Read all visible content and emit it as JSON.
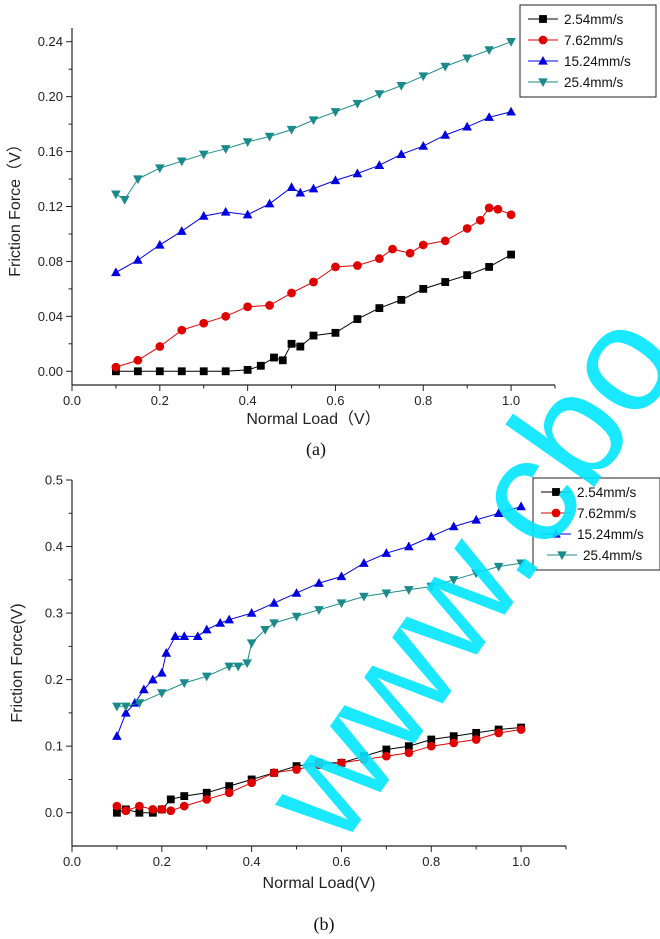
{
  "chart_data": [
    {
      "panel": "(a)",
      "type": "scatter",
      "xlabel": "Normal Load（V）",
      "ylabel": "Friction Force（V）",
      "xlim": [
        0.0,
        1.1
      ],
      "ylim": [
        -0.01,
        0.25
      ],
      "xticks": [
        "0.0",
        "0.2",
        "0.4",
        "0.6",
        "0.8",
        "1.0"
      ],
      "yticks": [
        "0.00",
        "0.04",
        "0.08",
        "0.12",
        "0.16",
        "0.20",
        "0.24"
      ],
      "grid": false,
      "legend_position": "top-right",
      "series": [
        {
          "name": "2.54mm/s",
          "marker": "square",
          "color": "#000000",
          "x": [
            0.1,
            0.15,
            0.2,
            0.25,
            0.3,
            0.35,
            0.4,
            0.43,
            0.46,
            0.48,
            0.5,
            0.52,
            0.55,
            0.6,
            0.65,
            0.7,
            0.75,
            0.8,
            0.85,
            0.9,
            0.95,
            1.0
          ],
          "y": [
            0.0,
            0.0,
            0.0,
            0.0,
            0.0,
            0.0,
            0.001,
            0.004,
            0.01,
            0.008,
            0.02,
            0.018,
            0.026,
            0.028,
            0.038,
            0.046,
            0.052,
            0.06,
            0.065,
            0.07,
            0.076,
            0.085
          ]
        },
        {
          "name": "7.62mm/s",
          "marker": "circle",
          "color": "#e00000",
          "x": [
            0.1,
            0.15,
            0.2,
            0.25,
            0.3,
            0.35,
            0.4,
            0.45,
            0.5,
            0.55,
            0.6,
            0.65,
            0.7,
            0.73,
            0.77,
            0.8,
            0.85,
            0.9,
            0.93,
            0.95,
            0.97,
            1.0
          ],
          "y": [
            0.003,
            0.008,
            0.018,
            0.03,
            0.035,
            0.04,
            0.047,
            0.048,
            0.057,
            0.065,
            0.076,
            0.077,
            0.082,
            0.089,
            0.086,
            0.092,
            0.095,
            0.104,
            0.11,
            0.119,
            0.118,
            0.114
          ]
        },
        {
          "name": "15.24mm/s",
          "marker": "triangle-up",
          "color": "#0000e0",
          "x": [
            0.1,
            0.15,
            0.2,
            0.25,
            0.3,
            0.35,
            0.4,
            0.45,
            0.5,
            0.52,
            0.55,
            0.6,
            0.65,
            0.7,
            0.75,
            0.8,
            0.85,
            0.9,
            0.95,
            1.0
          ],
          "y": [
            0.072,
            0.081,
            0.092,
            0.102,
            0.113,
            0.116,
            0.114,
            0.122,
            0.134,
            0.13,
            0.133,
            0.139,
            0.144,
            0.15,
            0.158,
            0.164,
            0.172,
            0.178,
            0.185,
            0.189
          ]
        },
        {
          "name": "25.4mm/s",
          "marker": "triangle-down",
          "color": "#1a8a8a",
          "x": [
            0.1,
            0.12,
            0.15,
            0.2,
            0.25,
            0.3,
            0.35,
            0.4,
            0.45,
            0.5,
            0.55,
            0.6,
            0.65,
            0.7,
            0.75,
            0.8,
            0.85,
            0.9,
            0.95,
            1.0
          ],
          "y": [
            0.129,
            0.125,
            0.14,
            0.148,
            0.153,
            0.158,
            0.162,
            0.167,
            0.171,
            0.176,
            0.183,
            0.189,
            0.195,
            0.202,
            0.208,
            0.215,
            0.222,
            0.228,
            0.234,
            0.24
          ]
        }
      ]
    },
    {
      "panel": "(b)",
      "type": "scatter",
      "xlabel": "Normal Load(V)",
      "ylabel": "Friction Force(V)",
      "xlim": [
        0.0,
        1.1
      ],
      "ylim": [
        -0.05,
        0.5
      ],
      "xticks": [
        "0.0",
        "0.2",
        "0.4",
        "0.6",
        "0.8",
        "1.0"
      ],
      "yticks": [
        "0.0",
        "0.1",
        "0.2",
        "0.3",
        "0.4",
        "0.5"
      ],
      "grid": false,
      "legend_position": "top-right",
      "series": [
        {
          "name": "2.54mm/s",
          "marker": "square",
          "color": "#000000",
          "x": [
            0.1,
            0.12,
            0.15,
            0.18,
            0.2,
            0.22,
            0.25,
            0.3,
            0.35,
            0.4,
            0.45,
            0.5,
            0.55,
            0.6,
            0.65,
            0.7,
            0.75,
            0.8,
            0.85,
            0.9,
            0.95,
            1.0
          ],
          "y": [
            0.0,
            0.005,
            0.0,
            0.0,
            0.005,
            0.02,
            0.025,
            0.03,
            0.04,
            0.05,
            0.06,
            0.07,
            0.075,
            0.075,
            0.085,
            0.095,
            0.1,
            0.11,
            0.115,
            0.12,
            0.125,
            0.128
          ]
        },
        {
          "name": "7.62mm/s",
          "marker": "circle",
          "color": "#e00000",
          "x": [
            0.1,
            0.12,
            0.15,
            0.18,
            0.2,
            0.22,
            0.25,
            0.3,
            0.35,
            0.4,
            0.45,
            0.5,
            0.55,
            0.6,
            0.65,
            0.7,
            0.75,
            0.8,
            0.85,
            0.9,
            0.95,
            1.0
          ],
          "y": [
            0.01,
            0.003,
            0.01,
            0.005,
            0.005,
            0.003,
            0.01,
            0.02,
            0.03,
            0.045,
            0.06,
            0.065,
            0.072,
            0.075,
            0.08,
            0.085,
            0.09,
            0.1,
            0.105,
            0.11,
            0.12,
            0.125
          ]
        },
        {
          "name": "15.24mm/s",
          "marker": "triangle-up",
          "color": "#0000e0",
          "x": [
            0.1,
            0.12,
            0.14,
            0.16,
            0.18,
            0.2,
            0.21,
            0.23,
            0.25,
            0.28,
            0.3,
            0.33,
            0.35,
            0.4,
            0.45,
            0.5,
            0.55,
            0.6,
            0.65,
            0.7,
            0.75,
            0.8,
            0.85,
            0.9,
            0.95,
            1.0
          ],
          "y": [
            0.115,
            0.15,
            0.165,
            0.185,
            0.2,
            0.21,
            0.24,
            0.265,
            0.265,
            0.265,
            0.275,
            0.285,
            0.29,
            0.3,
            0.315,
            0.33,
            0.345,
            0.355,
            0.375,
            0.39,
            0.4,
            0.415,
            0.43,
            0.44,
            0.45,
            0.46
          ]
        },
        {
          "name": "25.4mm/s",
          "marker": "triangle-down",
          "color": "#1a8a8a",
          "x": [
            0.1,
            0.12,
            0.15,
            0.2,
            0.25,
            0.3,
            0.35,
            0.37,
            0.39,
            0.4,
            0.43,
            0.45,
            0.5,
            0.55,
            0.6,
            0.65,
            0.7,
            0.75,
            0.8,
            0.85,
            0.9,
            0.95,
            1.0
          ],
          "y": [
            0.16,
            0.16,
            0.165,
            0.18,
            0.195,
            0.205,
            0.22,
            0.22,
            0.225,
            0.255,
            0.275,
            0.285,
            0.295,
            0.305,
            0.315,
            0.325,
            0.33,
            0.335,
            0.34,
            0.35,
            0.36,
            0.37,
            0.375
          ]
        }
      ]
    }
  ],
  "captions": [
    "(a)",
    "(b)"
  ],
  "watermark": "www.cbo",
  "watermark_color": "#00e5ff"
}
